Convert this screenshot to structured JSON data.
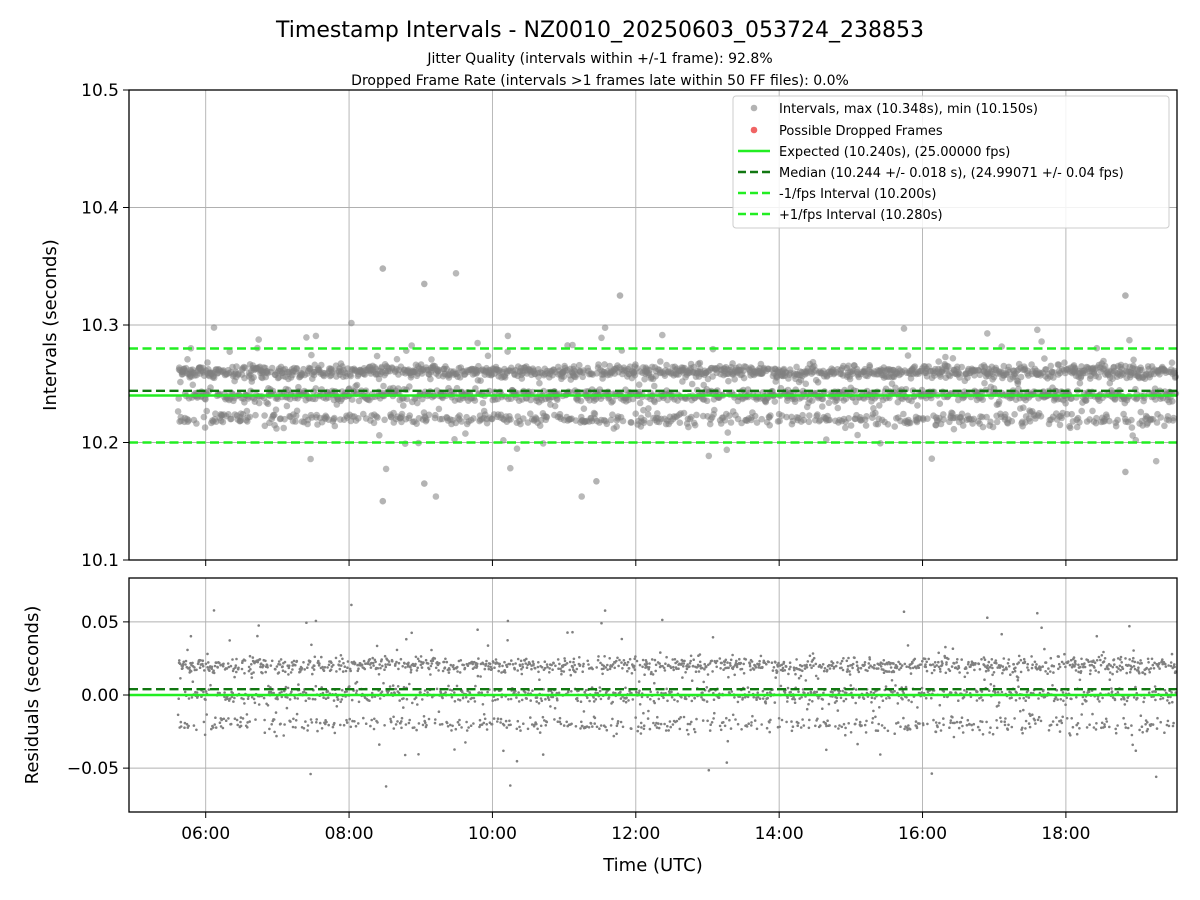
{
  "chart_data": [
    {
      "type": "scatter",
      "title": "Timestamp Intervals - NZ0010_20250603_053724_238853",
      "subtitle_lines": [
        "Jitter Quality (intervals within +/-1 frame): 92.8%",
        "Dropped Frame Rate (intervals >1 frames late within 50 FF files): 0.0%"
      ],
      "xlabel": "",
      "ylabel": "Intervals (seconds)",
      "x_unit": "hours UTC",
      "xlim": [
        4.93,
        19.55
      ],
      "ylim": [
        10.1,
        10.5
      ],
      "yticks": [
        "10.1",
        "10.2",
        "10.3",
        "10.4",
        "10.5"
      ],
      "grid": true,
      "legend_position": "top-right",
      "series": [
        {
          "name": "Intervals, max (10.348s), min (10.150s)",
          "kind": "points",
          "color": "#808080",
          "x_range": [
            "05:37",
            "19:32"
          ],
          "y_max": 10.348,
          "y_min": 10.15,
          "main_levels": [
            10.22,
            10.24,
            10.26
          ],
          "outlier_points": [
            [
              8.47,
              10.348
            ],
            [
              8.47,
              10.15
            ],
            [
              9.05,
              10.335
            ],
            [
              11.78,
              10.325
            ],
            [
              18.83,
              10.325
            ],
            [
              18.83,
              10.175
            ],
            [
              9.05,
              10.165
            ],
            [
              11.45,
              10.167
            ]
          ]
        },
        {
          "name": "Possible Dropped Frames",
          "kind": "points",
          "color": "#f06464",
          "values": []
        },
        {
          "name": "Expected (10.240s), (25.00000 fps)",
          "kind": "hline",
          "y": 10.24,
          "color": "#22ee22",
          "style": "solid"
        },
        {
          "name": "Median (10.244 +/- 0.018 s), (24.99071 +/- 0.04 fps)",
          "kind": "hline",
          "y": 10.244,
          "color": "#117711",
          "style": "dashed"
        },
        {
          "name": "-1/fps Interval (10.200s)",
          "kind": "hline",
          "y": 10.2,
          "color": "#22ee22",
          "style": "dashed"
        },
        {
          "name": "+1/fps Interval (10.280s)",
          "kind": "hline",
          "y": 10.28,
          "color": "#22ee22",
          "style": "dashed"
        }
      ]
    },
    {
      "type": "scatter",
      "title": "",
      "xlabel": "Time (UTC)",
      "ylabel": "Residuals (seconds)",
      "x_unit": "hours UTC",
      "xlim": [
        4.93,
        19.55
      ],
      "ylim": [
        -0.08,
        0.08
      ],
      "xticks": [
        "06:00",
        "08:00",
        "10:00",
        "12:00",
        "14:00",
        "16:00",
        "18:00"
      ],
      "yticks": [
        "0.05",
        "0.00",
        "−0.05"
      ],
      "grid": true,
      "series": [
        {
          "kind": "points",
          "color": "#808080",
          "main_levels": [
            -0.02,
            0.0,
            0.02
          ],
          "x_range": [
            "05:37",
            "19:32"
          ]
        },
        {
          "kind": "hline",
          "y": 0.0,
          "color": "#22ee22",
          "style": "solid"
        },
        {
          "kind": "hline",
          "y": 0.004,
          "color": "#117711",
          "style": "dashed"
        }
      ]
    }
  ]
}
